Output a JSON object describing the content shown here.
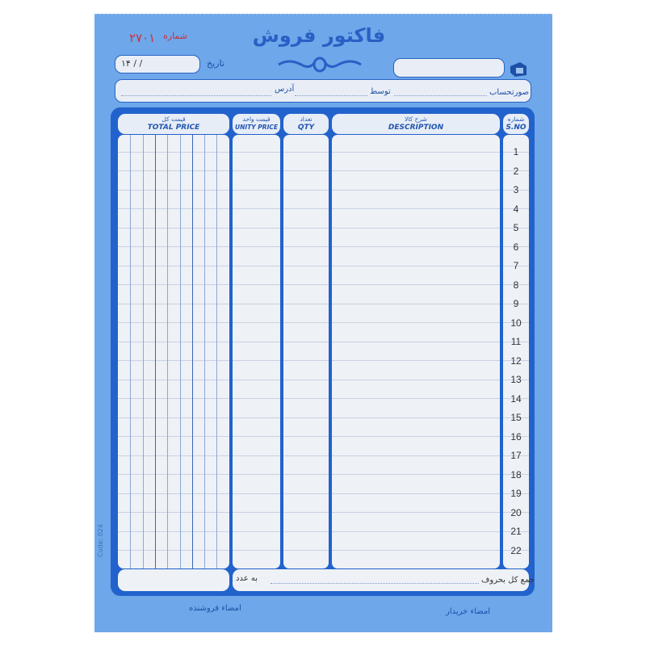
{
  "header": {
    "title": "فاکتور فروش",
    "serial_label": "شماره",
    "serial_number": "۲۷۰۱",
    "date_label": "تاریخ",
    "date_value": "۱۴      /      /",
    "phone_icon": "telephone-icon"
  },
  "address_bar": {
    "account_label": "صورتحساب",
    "by_label": "توسط",
    "address_label": "آدرس"
  },
  "table": {
    "columns": [
      {
        "fa": "شماره",
        "en": "S.NO"
      },
      {
        "fa": "شرح کالا",
        "en": "DESCRIPTION"
      },
      {
        "fa": "تعداد",
        "en": "QTY"
      },
      {
        "fa": "قیمت واحد",
        "en": "UNITY PRICE"
      },
      {
        "fa": "قیمت کل",
        "en": "TOTAL PRICE"
      }
    ],
    "row_numbers": [
      "1",
      "2",
      "3",
      "4",
      "5",
      "6",
      "7",
      "8",
      "9",
      "10",
      "11",
      "12",
      "13",
      "14",
      "15",
      "16",
      "17",
      "18",
      "19",
      "20",
      "21",
      "22"
    ]
  },
  "footer": {
    "total_in_words_label": "جمع کل بحروف",
    "in_numbers_label": "به عدد",
    "buyer_signature": "امضاء خریدار",
    "seller_signature": "امضاء فروشنده",
    "code": "Code: 024"
  },
  "colors": {
    "paper": "#6ea7ea",
    "frame": "#2262cc",
    "cell": "#eef1f6",
    "serial": "#c8323c"
  }
}
